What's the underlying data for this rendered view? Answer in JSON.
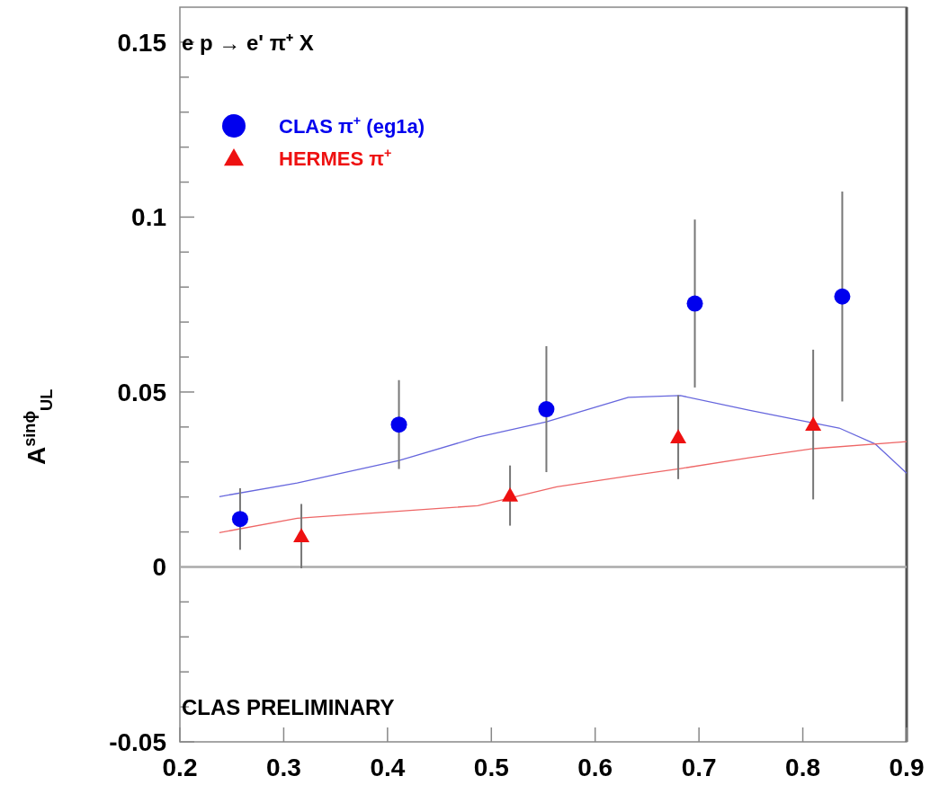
{
  "chart_data": {
    "type": "scatter",
    "ylabel": "A$^{sinϕ}$$_{UL}$",
    "annotations": [
      "e p → e' π⁺ X",
      "CLAS PRELIMINARY"
    ],
    "xlim": [
      0.2,
      0.9
    ],
    "xticks": [
      0.2,
      0.3,
      0.4,
      0.5,
      0.6,
      0.7,
      0.8,
      0.9
    ],
    "ylim": [
      -0.05,
      0.16
    ],
    "yticks": [
      -0.05,
      {
        "value": -0.04,
        "label": null
      },
      {
        "value": -0.03,
        "label": null
      },
      {
        "value": -0.02,
        "label": null
      },
      {
        "value": -0.01,
        "label": null
      },
      0,
      {
        "value": 0.01,
        "label": null
      },
      {
        "value": 0.02,
        "label": null
      },
      {
        "value": 0.03,
        "label": null
      },
      {
        "value": 0.04,
        "label": null
      },
      0.05,
      {
        "value": 0.06,
        "label": null
      },
      {
        "value": 0.07,
        "label": null
      },
      {
        "value": 0.08,
        "label": null
      },
      {
        "value": 0.09,
        "label": null
      },
      {
        "value": 0.1,
        "label": "0.1"
      },
      {
        "value": 0.11,
        "label": null
      },
      {
        "value": 0.12,
        "label": null
      },
      {
        "value": 0.13,
        "label": null
      },
      {
        "value": 0.14,
        "label": null
      },
      0.15
    ],
    "legend": "top left",
    "ref_lines": [
      {
        "axis": "y",
        "value": 0,
        "color": "#aaaaaa"
      }
    ],
    "series": [
      {
        "type": "line",
        "color": "#6666dd",
        "x": [
          0.238,
          0.313,
          0.411,
          0.487,
          0.553,
          0.632,
          0.682,
          0.748,
          0.835,
          0.87,
          0.9
        ],
        "values": [
          0.0201,
          0.024,
          0.0304,
          0.0371,
          0.0415,
          0.0485,
          0.049,
          0.0448,
          0.0397,
          0.0351,
          0.0268
        ]
      },
      {
        "type": "line",
        "color": "#ee6666",
        "x": [
          0.238,
          0.313,
          0.487,
          0.563,
          0.632,
          0.682,
          0.748,
          0.81,
          0.9
        ],
        "values": [
          0.0098,
          0.0139,
          0.0175,
          0.0229,
          0.026,
          0.0281,
          0.0312,
          0.0338,
          0.0358
        ]
      },
      {
        "name": "CLAS π$^{+}$ (eg1a)",
        "color": "#0000ee",
        "marker": "circle",
        "x": [
          0.258,
          0.411,
          0.553,
          0.696,
          0.838
        ],
        "values": [
          0.0137,
          0.0407,
          0.0451,
          0.0753,
          0.0773
        ],
        "errors": [
          0.0088,
          0.0127,
          0.018,
          0.024,
          0.03
        ]
      },
      {
        "name": "HERMES π$^{+}$",
        "color": "#ee1111",
        "marker": "triangle",
        "x": [
          0.317,
          0.518,
          0.68,
          0.81
        ],
        "values": [
          0.0088,
          0.0204,
          0.0371,
          0.0407
        ],
        "errors": [
          0.0092,
          0.0086,
          0.012,
          0.0214
        ]
      }
    ]
  }
}
